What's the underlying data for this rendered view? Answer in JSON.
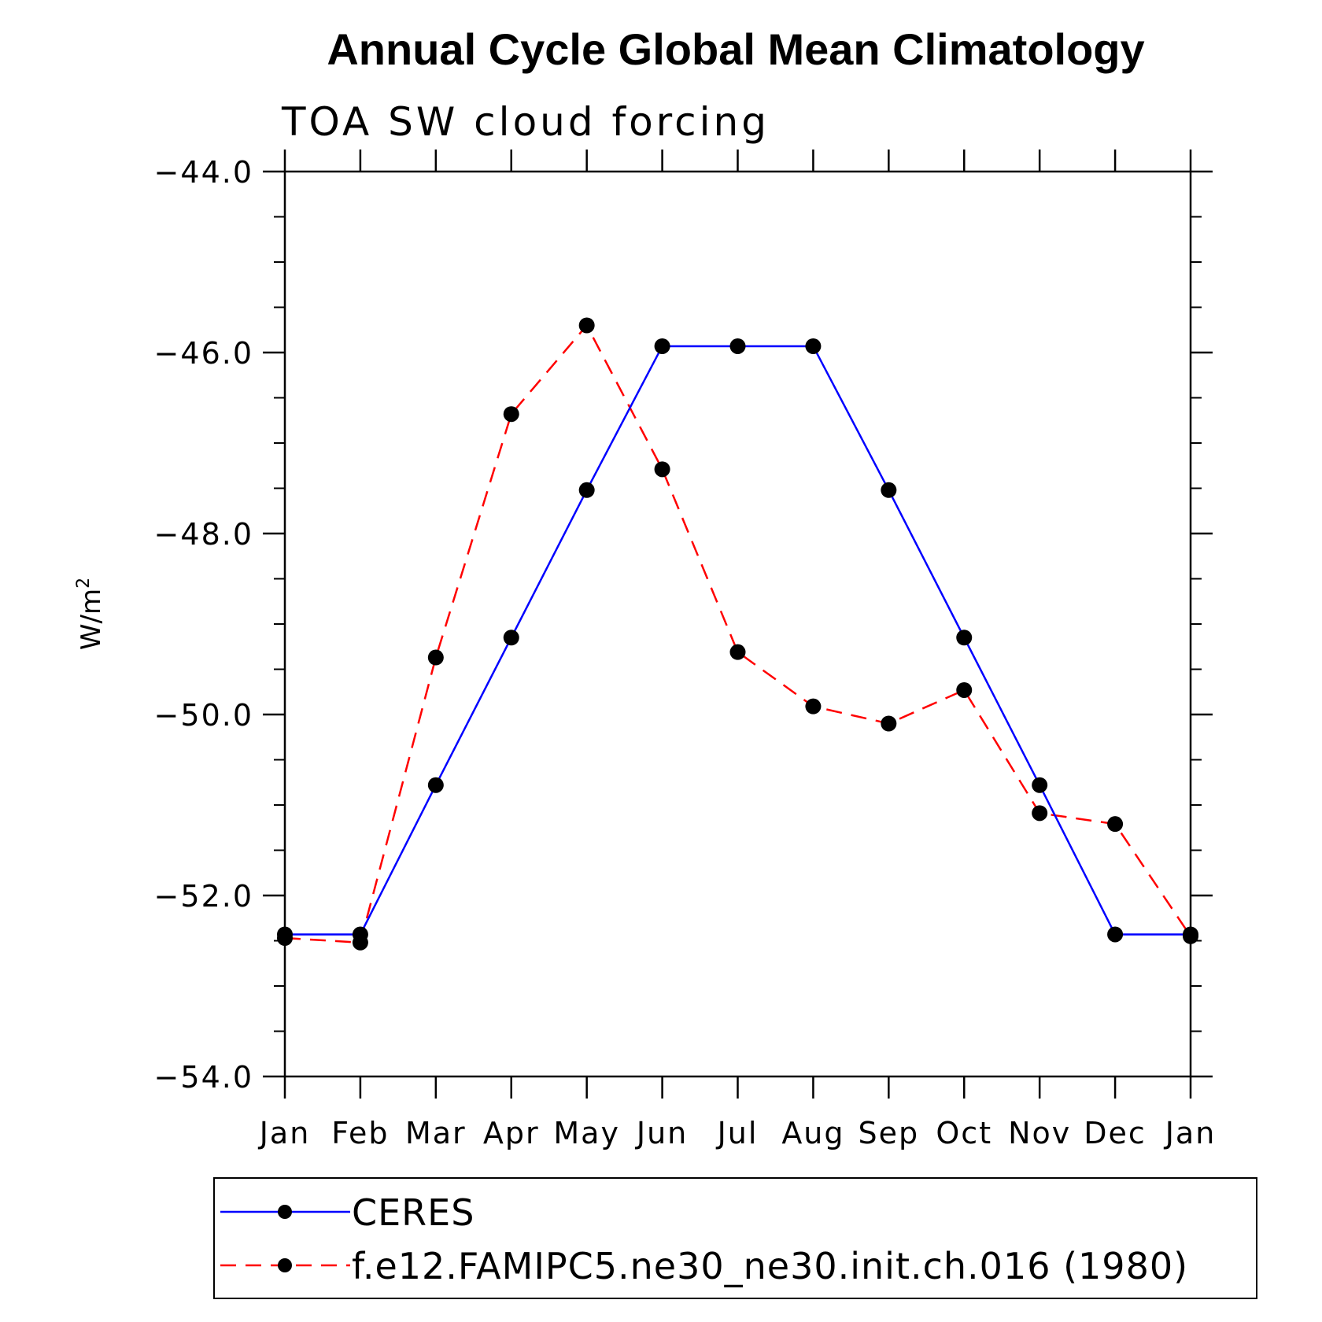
{
  "chart_data": {
    "type": "line",
    "title": "Annual Cycle Global Mean Climatology",
    "subtitle": "TOA SW cloud forcing",
    "ylabel": "W/m",
    "ylabel_superscript": "2",
    "xlabel": "",
    "categories": [
      "Jan",
      "Feb",
      "Mar",
      "Apr",
      "May",
      "Jun",
      "Jul",
      "Aug",
      "Sep",
      "Oct",
      "Nov",
      "Dec",
      "Jan"
    ],
    "ylim": [
      -54.0,
      -44.0
    ],
    "yticks": [
      -44.0,
      -46.0,
      -48.0,
      -50.0,
      -52.0,
      -54.0
    ],
    "ytick_labels": [
      "−44.0",
      "−46.0",
      "−48.0",
      "−50.0",
      "−52.0",
      "−54.0"
    ],
    "grid": false,
    "legend_position": "bottom",
    "series": [
      {
        "name": "CERES",
        "color": "#0000ff",
        "dash": "solid",
        "values": [
          -52.43,
          -52.43,
          -50.78,
          -49.15,
          -47.52,
          -45.93,
          -45.93,
          -45.93,
          -47.52,
          -49.15,
          -50.78,
          -52.43,
          -52.43
        ]
      },
      {
        "name": "f.e12.FAMIPC5.ne30_ne30.init.ch.016 (1980)",
        "color": "#ff0000",
        "dash": "dashed",
        "values": [
          -52.47,
          -52.52,
          -49.37,
          -46.68,
          -45.7,
          -47.29,
          -49.31,
          -49.91,
          -50.1,
          -49.73,
          -51.09,
          -51.21,
          -52.45
        ]
      }
    ]
  }
}
